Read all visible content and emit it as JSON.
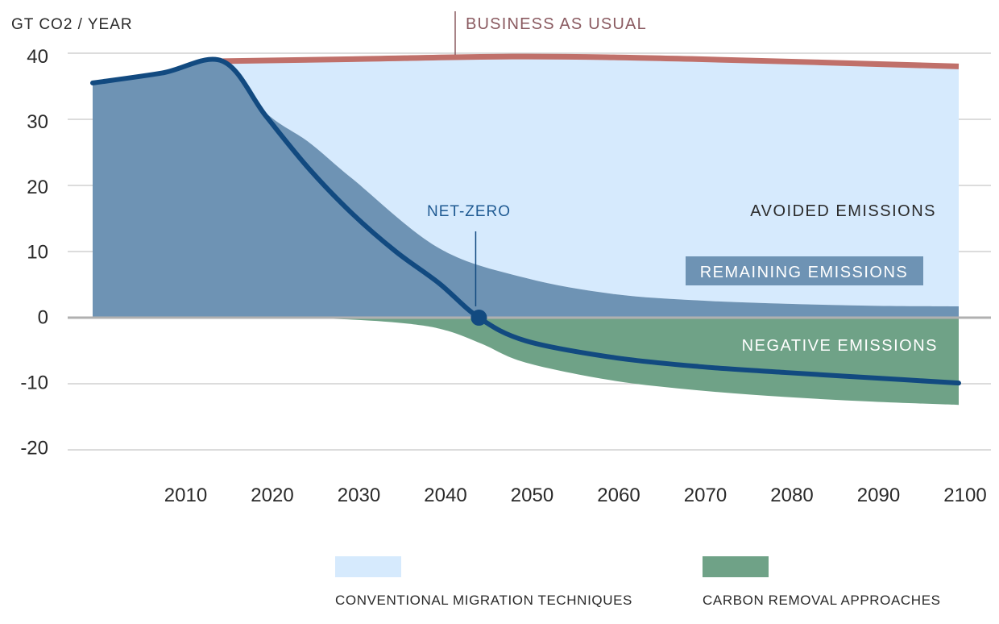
{
  "chart_data": {
    "type": "area",
    "ylabel": "GT CO2 / YEAR",
    "xlim": [
      2000,
      2100
    ],
    "ylim": [
      -20,
      40
    ],
    "grid": true,
    "yticks": [
      40,
      30,
      20,
      10,
      0,
      -10,
      -20
    ],
    "ytick_labels": [
      "40",
      "30",
      "20",
      "10",
      "0",
      "-10",
      "-20"
    ],
    "xticks": [
      2010,
      2020,
      2030,
      2040,
      2050,
      2060,
      2070,
      2080,
      2090,
      2100
    ],
    "xtick_labels": [
      "2010",
      "2020",
      "2030",
      "2040",
      "2050",
      "2060",
      "2070",
      "2080",
      "2090",
      "2100"
    ],
    "series": [
      {
        "name": "BUSINESS AS USUAL",
        "role": "line",
        "color": "#c0706a",
        "x": [
          2015,
          2030,
          2050,
          2070,
          2100
        ],
        "y": [
          38.8,
          39.1,
          39.5,
          39.1,
          38.0
        ]
      },
      {
        "name": "NET-ZERO",
        "role": "line",
        "color": "#124a80",
        "x": [
          2000,
          2008,
          2015,
          2020,
          2025,
          2030,
          2035,
          2040,
          2044.6,
          2050,
          2060,
          2070,
          2080,
          2090,
          2100
        ],
        "y": [
          35.5,
          37.0,
          38.8,
          30.5,
          22.5,
          15.7,
          10.0,
          5.2,
          0,
          -3.5,
          -6.0,
          -7.4,
          -8.3,
          -9.1,
          -9.9
        ]
      },
      {
        "name": "REMAINING EMISSIONS",
        "role": "area",
        "color": "#6e93b4",
        "x": [
          2000,
          2008,
          2015,
          2020,
          2025,
          2030,
          2040,
          2050,
          2060,
          2070,
          2080,
          2090,
          2100
        ],
        "y": [
          35.5,
          37.0,
          38.8,
          31.0,
          26.5,
          21.0,
          10.5,
          6.0,
          3.6,
          2.6,
          2.1,
          1.8,
          1.7
        ]
      },
      {
        "name": "NEGATIVE EMISSIONS",
        "role": "area",
        "color": "#6fa287",
        "x": [
          2000,
          2020,
          2030,
          2037,
          2041,
          2045,
          2050,
          2060,
          2070,
          2080,
          2090,
          2100
        ],
        "y": [
          0,
          0,
          -0.3,
          -1.0,
          -2.0,
          -4.0,
          -6.8,
          -9.5,
          -11.0,
          -12.0,
          -12.7,
          -13.2
        ]
      }
    ],
    "annotations": {
      "avoided": "AVOIDED EMISSIONS",
      "remaining": "REMAINING EMISSIONS",
      "negative": "NEGATIVE EMISSIONS",
      "net_zero": "NET-ZERO",
      "net_zero_year": 2044.6,
      "bau": "BUSINESS AS USUAL"
    },
    "legend": {
      "placement": "bottom",
      "items": [
        {
          "label": "CONVENTIONAL MIGRATION TECHNIQUES",
          "color": "#d6eafd"
        },
        {
          "label": "CARBON REMOVAL APPROACHES",
          "color": "#6fa287"
        }
      ]
    },
    "colors": {
      "avoided": "#d6eafd",
      "grid": "#c8c8c8",
      "zero_line": "#b0b0b0",
      "text": "#2a2a2a"
    }
  }
}
